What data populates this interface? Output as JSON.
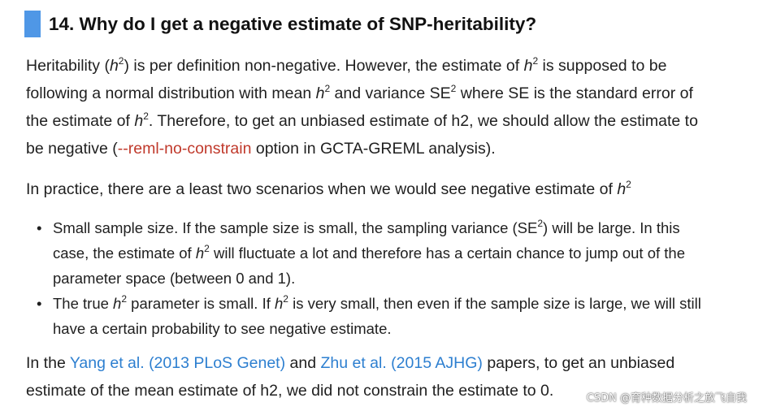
{
  "heading": "14. Why do I get a negative estimate of SNP-heritability?",
  "p1": {
    "l1_a": "Heritability (",
    "l1_h": "h",
    "l1_sup": "2",
    "l1_b": ") is per definition non-negative. However, the estimate of ",
    "l1_h2": "h",
    "l1_sup2": "2",
    "l1_c": " is supposed to be",
    "l2_a": "following a normal distribution with mean ",
    "l2_h": "h",
    "l2_sup": "2",
    "l2_b": " and variance SE",
    "l2_sup2": "2",
    "l2_c": " where SE is the standard error of",
    "l3_a": "the estimate of ",
    "l3_h": "h",
    "l3_sup": "2",
    "l3_b": ". Therefore, to get an unbiased estimate of h2, we should allow the estimate to",
    "l4_a": "be negative (",
    "l4_code": "--reml-no-constrain",
    "l4_b": " option in GCTA-GREML analysis)."
  },
  "p2": {
    "a": "In practice, there are a least two scenarios when we would see negative estimate of ",
    "h": "h",
    "sup": "2"
  },
  "bullets": [
    {
      "l1_a": "Small sample size. If the sample size is small, the sampling variance (SE",
      "l1_sup": "2",
      "l1_b": ") will be large. In this",
      "l2_a": "case, the estimate of ",
      "l2_h": "h",
      "l2_sup": "2",
      "l2_b": " will fluctuate a lot and therefore has a certain chance to jump out of the",
      "l3": "parameter space (between 0 and 1)."
    },
    {
      "l1_a": "The true ",
      "l1_h": "h",
      "l1_sup": "2",
      "l1_b": " parameter is small. If ",
      "l1_h2": "h",
      "l1_sup2": "2",
      "l1_c": " is very small, then even if the sample size is large, we will still",
      "l2": "have a certain probability to see negative estimate."
    }
  ],
  "p3": {
    "l1_a": "In the ",
    "link1": "Yang et al. (2013 PLoS Genet)",
    "l1_b": " and ",
    "link2": "Zhu et al. (2015 AJHG)",
    "l1_c": " papers, to get an unbiased",
    "l2": "estimate of the mean estimate of h2, we did not constrain the estimate to 0."
  },
  "watermark": "CSDN @育种数据分析之放飞自我",
  "colors": {
    "accent_bar": "#4f97e6",
    "code": "#c0392b",
    "link": "#2d7fd0"
  }
}
